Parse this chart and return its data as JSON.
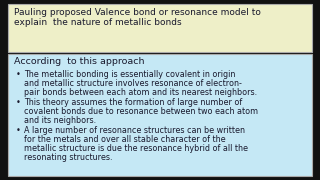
{
  "bg_color": "#111111",
  "top_box_color": "#eeefc8",
  "bottom_box_color": "#c5e8f5",
  "top_box_border": "#aaaaaa",
  "bottom_box_border": "#aaaaaa",
  "top_box_text_line1": "Pauling proposed Valence bond or resonance model to",
  "top_box_text_line2": "explain  the nature of metallic bonds",
  "heading": "According  to this approach",
  "bullet1_line1": "The metallic bonding is essentially covalent in origin",
  "bullet1_line2": "and metallic structure involves resonance of electron-",
  "bullet1_line3": "pair bonds between each atom and its nearest neighbors.",
  "bullet2_line1": "This theory assumes the formation of large number of",
  "bullet2_line2": "covalent bonds due to resonance between two each atom",
  "bullet2_line3": "and its neighbors.",
  "bullet3_line1": "A large number of resonance structures can be written",
  "bullet3_line2": "for the metals and over all stable character of the",
  "bullet3_line3": "metallic structure is due the resonance hybrid of all the",
  "bullet3_line4": "resonating structures.",
  "font_size_top": 6.5,
  "font_size_body": 5.8,
  "font_size_heading": 6.8,
  "text_color": "#1a1a2e"
}
